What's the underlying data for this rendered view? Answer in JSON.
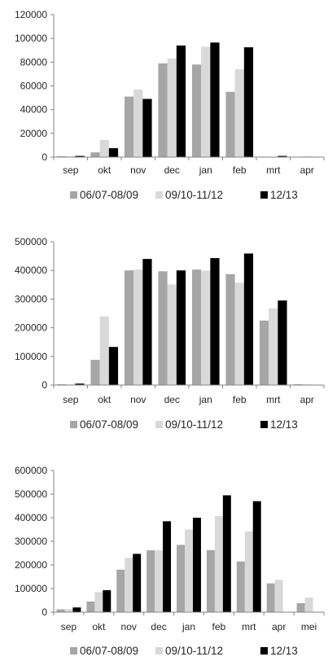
{
  "legend_labels": [
    "06/07-08/09",
    "09/10-11/12",
    "12/13"
  ],
  "colors": {
    "s0": "#a6a6a6",
    "s1": "#d9d9d9",
    "s2": "#000000",
    "axis": "#868686",
    "text": "#262626"
  },
  "chart_data": [
    {
      "type": "bar",
      "categories": [
        "sep",
        "okt",
        "nov",
        "dec",
        "jan",
        "feb",
        "mrt",
        "apr"
      ],
      "ylim": [
        0,
        120000
      ],
      "yticks": [
        0,
        20000,
        40000,
        60000,
        80000,
        100000,
        120000
      ],
      "ytick_labels": [
        "0",
        "20000",
        "40000",
        "60000",
        "80000",
        "100000",
        "120000"
      ],
      "grid": false,
      "legend": "bottom",
      "series": [
        {
          "name": "06/07-08/09",
          "values": [
            800,
            4000,
            51000,
            79000,
            78000,
            55000,
            400,
            300
          ]
        },
        {
          "name": "09/10-11/12",
          "values": [
            600,
            14500,
            57000,
            83000,
            93000,
            74000,
            300,
            700
          ]
        },
        {
          "name": "12/13",
          "values": [
            1000,
            7500,
            49000,
            94000,
            96500,
            92500,
            1000,
            200
          ]
        }
      ]
    },
    {
      "type": "bar",
      "categories": [
        "sep",
        "okt",
        "nov",
        "dec",
        "jan",
        "feb",
        "mrt",
        "apr"
      ],
      "ylim": [
        0,
        500000
      ],
      "yticks": [
        0,
        100000,
        200000,
        300000,
        400000,
        500000
      ],
      "ytick_labels": [
        "0",
        "100000",
        "200000",
        "300000",
        "400000",
        "500000"
      ],
      "grid": false,
      "legend": "bottom",
      "series": [
        {
          "name": "06/07-08/09",
          "values": [
            3000,
            88000,
            400000,
            397000,
            403000,
            387000,
            225000,
            3000
          ]
        },
        {
          "name": "09/10-11/12",
          "values": [
            2000,
            240000,
            403000,
            351000,
            399000,
            357000,
            268000,
            3000
          ]
        },
        {
          "name": "12/13",
          "values": [
            5000,
            133000,
            440000,
            400000,
            443000,
            459000,
            295000,
            1000
          ]
        }
      ]
    },
    {
      "type": "bar",
      "categories": [
        "sep",
        "okt",
        "nov",
        "dec",
        "jan",
        "feb",
        "mrt",
        "apr",
        "mei"
      ],
      "ylim": [
        0,
        600000
      ],
      "yticks": [
        0,
        100000,
        200000,
        300000,
        400000,
        500000,
        600000
      ],
      "ytick_labels": [
        "0",
        "100000",
        "200000",
        "300000",
        "400000",
        "500000",
        "600000"
      ],
      "grid": false,
      "legend": "bottom",
      "series": [
        {
          "name": "06/07-08/09",
          "values": [
            12000,
            45000,
            180000,
            262000,
            285000,
            263000,
            215000,
            122000,
            38000
          ]
        },
        {
          "name": "09/10-11/12",
          "values": [
            13000,
            85000,
            230000,
            262000,
            350000,
            407000,
            342000,
            137000,
            62000
          ]
        },
        {
          "name": "12/13",
          "values": [
            20000,
            93000,
            247000,
            385000,
            400000,
            495000,
            470000,
            0,
            0
          ]
        }
      ]
    }
  ]
}
